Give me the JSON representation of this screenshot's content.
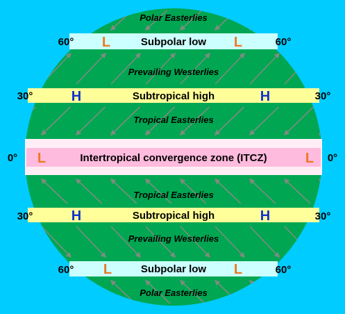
{
  "diagram": {
    "colors": {
      "background": "#00ccff",
      "globe": "#00a651",
      "subpolar_band": "#ccffff",
      "subtropical_band": "#ffff99",
      "itcz_band": "#ffbbdd",
      "itcz_outer": "#ffeef6",
      "high_letter": "#1133cc",
      "low_letter": "#ee7722",
      "arrow": "#7d8c80"
    },
    "latitudes": {
      "north_60": "60°",
      "north_30": "30°",
      "equator": "0°",
      "south_30": "30°",
      "south_60": "60°"
    },
    "bands": {
      "north_subpolar": {
        "label": "Subpolar low",
        "pressure": "L"
      },
      "north_subtropical": {
        "label": "Subtropical high",
        "pressure": "H"
      },
      "itcz": {
        "label": "Intertropical convergence zone (ITCZ)",
        "pressure": "L"
      },
      "south_subtropical": {
        "label": "Subtropical high",
        "pressure": "H"
      },
      "south_subpolar": {
        "label": "Subpolar low",
        "pressure": "L"
      }
    },
    "winds": {
      "north_polar": "Polar Easterlies",
      "north_westerlies": "Prevailing Westerlies",
      "north_trades": "Tropical Easterlies",
      "south_trades": "Tropical Easterlies",
      "south_westerlies": "Prevailing Westerlies",
      "south_polar": "Polar Easterlies"
    }
  }
}
